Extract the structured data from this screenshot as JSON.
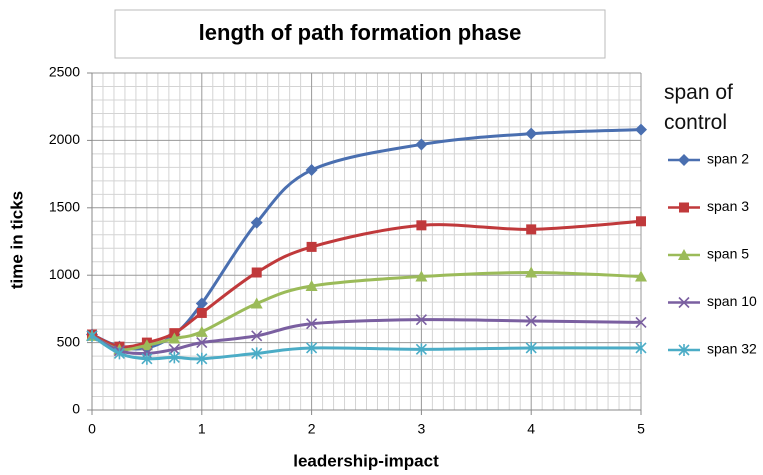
{
  "chart_data": {
    "type": "line",
    "title": "length of path formation phase",
    "x_label": "leadership-impact",
    "y_label": "time in ticks",
    "legend_title": "span of control",
    "x": [
      0,
      0.25,
      0.5,
      0.75,
      1,
      1.5,
      2,
      3,
      4,
      5
    ],
    "series": [
      {
        "name": "span 2",
        "color": "#4a6fb0",
        "marker": "diamond",
        "values": [
          560,
          470,
          460,
          560,
          790,
          1390,
          1780,
          1970,
          2050,
          2080
        ]
      },
      {
        "name": "span 3",
        "color": "#c0393b",
        "marker": "square",
        "values": [
          560,
          470,
          500,
          570,
          720,
          1020,
          1210,
          1370,
          1340,
          1400
        ]
      },
      {
        "name": "span 5",
        "color": "#9bbb59",
        "marker": "triangle",
        "values": [
          550,
          450,
          480,
          530,
          580,
          790,
          920,
          990,
          1020,
          990
        ]
      },
      {
        "name": "span 10",
        "color": "#7a5fa0",
        "marker": "x",
        "values": [
          550,
          440,
          420,
          450,
          500,
          550,
          640,
          670,
          660,
          650
        ]
      },
      {
        "name": "span 32",
        "color": "#4bacc6",
        "marker": "star",
        "values": [
          550,
          420,
          380,
          390,
          380,
          420,
          460,
          450,
          460,
          460
        ]
      }
    ],
    "xlim": [
      0,
      5
    ],
    "xticks": [
      0,
      1,
      2,
      3,
      4,
      5
    ],
    "ylim": [
      0,
      2500
    ],
    "yticks": [
      0,
      500,
      1000,
      1500,
      2000,
      2500
    ],
    "grid": true,
    "minor_grid": true,
    "legend": "right"
  }
}
